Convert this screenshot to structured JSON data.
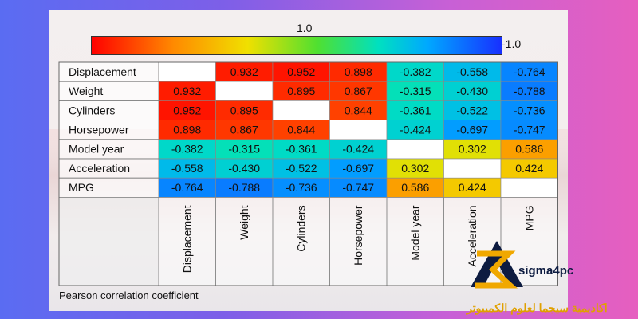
{
  "chart_data": {
    "type": "heatmap",
    "variables": [
      "Displacement",
      "Weight",
      "Cylinders",
      "Horsepower",
      "Model year",
      "Acceleration",
      "MPG"
    ],
    "matrix": [
      [
        null,
        0.932,
        0.952,
        0.898,
        -0.382,
        -0.558,
        -0.764
      ],
      [
        0.932,
        null,
        0.895,
        0.867,
        -0.315,
        -0.43,
        -0.788
      ],
      [
        0.952,
        0.895,
        null,
        0.844,
        -0.361,
        -0.522,
        -0.736
      ],
      [
        0.898,
        0.867,
        0.844,
        null,
        -0.424,
        -0.697,
        -0.747
      ],
      [
        -0.382,
        -0.315,
        -0.361,
        -0.424,
        null,
        0.302,
        0.586
      ],
      [
        -0.558,
        -0.43,
        -0.522,
        -0.697,
        0.302,
        null,
        0.424
      ],
      [
        -0.764,
        -0.788,
        -0.736,
        -0.747,
        0.586,
        0.424,
        null
      ]
    ],
    "colorscale": {
      "max_label": "1.0",
      "min_label": "-1.0",
      "colors": [
        "#ff0000",
        "#ff8a00",
        "#f0e000",
        "#50e030",
        "#00e0c0",
        "#00a8ff",
        "#1830ff"
      ]
    },
    "caption": "Pearson correlation coefficient"
  },
  "watermark": {
    "brand": "sigma4pc",
    "arabic": "اكاديمية سيجما لعلوم الكمبيوتر",
    "colors": {
      "navy": "#0d1b40",
      "gold": "#f0a800"
    }
  }
}
